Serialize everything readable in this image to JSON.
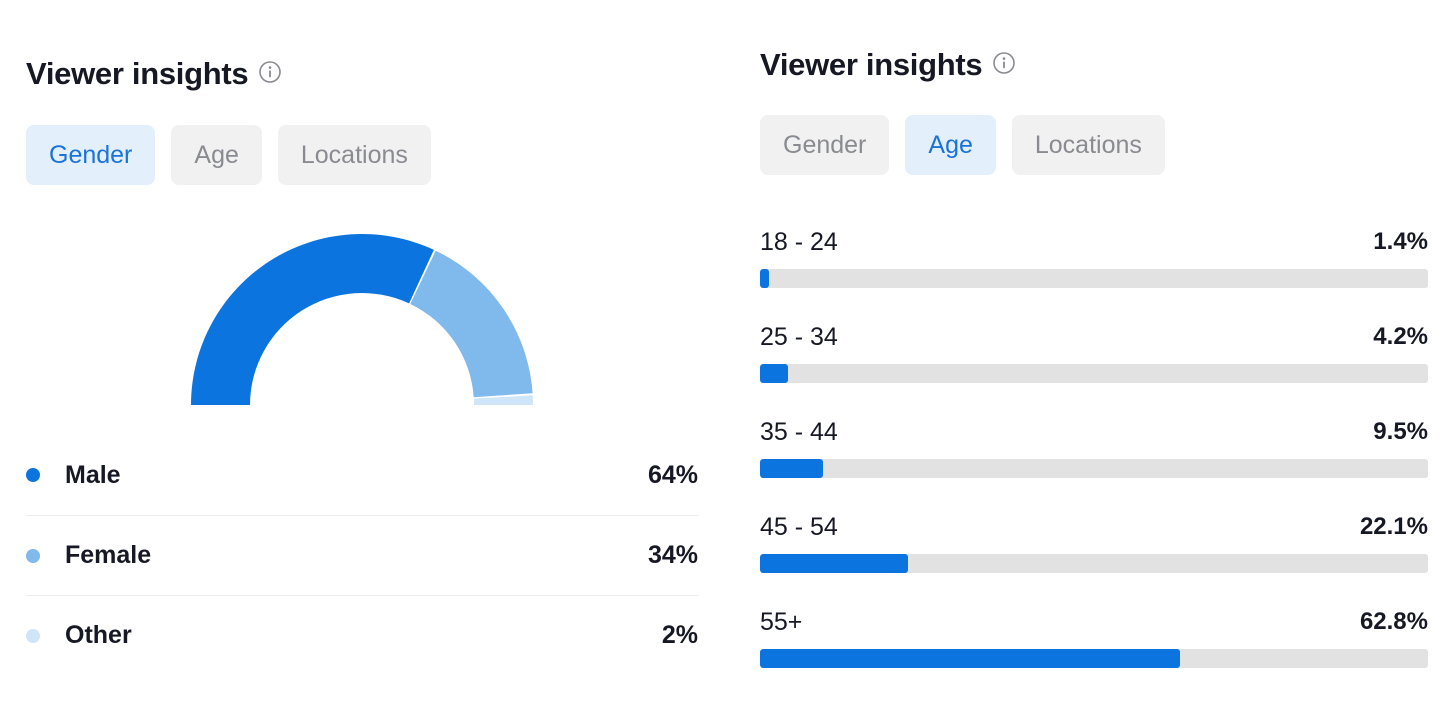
{
  "left_panel": {
    "title": "Viewer insights",
    "tabs": [
      {
        "label": "Gender",
        "active": true
      },
      {
        "label": "Age",
        "active": false
      },
      {
        "label": "Locations",
        "active": false
      }
    ]
  },
  "right_panel": {
    "title": "Viewer insights",
    "tabs": [
      {
        "label": "Gender",
        "active": false
      },
      {
        "label": "Age",
        "active": true
      },
      {
        "label": "Locations",
        "active": false
      }
    ]
  },
  "colors": {
    "male": "#0b74de",
    "female": "#80b9ec",
    "other": "#cfe5f8",
    "bar": "#0b74de",
    "track": "#e2e2e3"
  },
  "chart_data": [
    {
      "type": "pie",
      "style": "half-donut",
      "title": "",
      "legend_placement": "bottom",
      "categories": [
        "Male",
        "Female",
        "Other"
      ],
      "values": [
        64,
        34,
        2
      ],
      "value_labels": [
        "64%",
        "34%",
        "2%"
      ],
      "unit": "%"
    },
    {
      "type": "bar",
      "orientation": "horizontal",
      "title": "",
      "categories": [
        "18 - 24",
        "25 - 34",
        "35 - 44",
        "45 - 54",
        "55+"
      ],
      "values": [
        1.4,
        4.2,
        9.5,
        22.1,
        62.8
      ],
      "value_labels": [
        "1.4%",
        "4.2%",
        "9.5%",
        "22.1%",
        "62.8%"
      ],
      "unit": "%",
      "xlim": [
        0,
        100
      ],
      "grid": false
    }
  ]
}
